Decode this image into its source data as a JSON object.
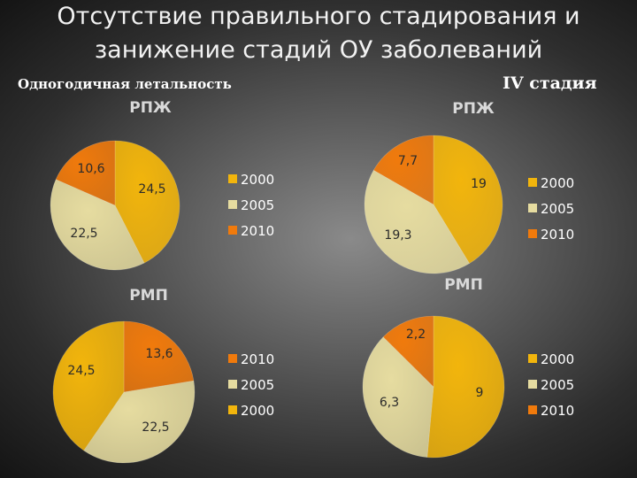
{
  "slide": {
    "title_line1": "Отсутствие правильного стадирования и",
    "title_line2": "занижение стадий ОУ заболеваний",
    "left_heading": "Одногодичная летальность",
    "right_heading": "IV стадия"
  },
  "colors": {
    "2000": "#f2b50c",
    "2005": "#e6dca0",
    "2010": "#f07a0c"
  },
  "chart_data": [
    {
      "type": "pie",
      "title": "РПЖ",
      "group": "Одногодичная летальность",
      "categories": [
        "2000",
        "2005",
        "2010"
      ],
      "values": [
        24.5,
        22.5,
        10.6
      ],
      "labels": [
        "24,5",
        "22,5",
        "10,6"
      ],
      "legend": [
        "2000",
        "2005",
        "2010"
      ],
      "legend_placement": "right"
    },
    {
      "type": "pie",
      "title": "РПЖ",
      "group": "IV стадия",
      "categories": [
        "2000",
        "2005",
        "2010"
      ],
      "values": [
        19,
        19.3,
        7.7
      ],
      "labels": [
        "19",
        "19,3",
        "7,7"
      ],
      "legend": [
        "2000",
        "2005",
        "2010"
      ],
      "legend_placement": "right"
    },
    {
      "type": "pie",
      "title": "РМП",
      "group": "Одногодичная летальность",
      "categories": [
        "2010",
        "2005",
        "2000"
      ],
      "values": [
        13.6,
        22.5,
        24.5
      ],
      "labels": [
        "13,6",
        "22,5",
        "24,5"
      ],
      "legend": [
        "2010",
        "2005",
        "2000"
      ],
      "legend_placement": "right"
    },
    {
      "type": "pie",
      "title": "РМП",
      "group": "IV стадия",
      "categories": [
        "2000",
        "2005",
        "2010"
      ],
      "values": [
        9,
        6.3,
        2.2
      ],
      "labels": [
        "9",
        "6,3",
        "2,2"
      ],
      "legend": [
        "2000",
        "2005",
        "2010"
      ],
      "legend_placement": "right"
    }
  ]
}
